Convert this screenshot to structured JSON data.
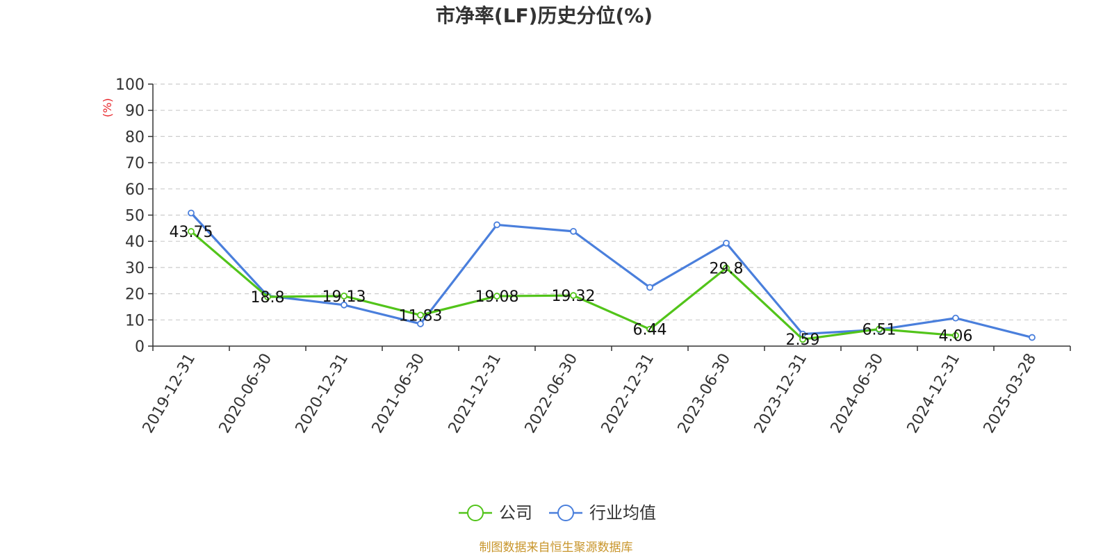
{
  "colors": {
    "company": "#52c41a",
    "industry": "#4a7fdc",
    "unit": "#e8252a",
    "source": "#c8952b",
    "grid": "#cccccc",
    "axis": "#333333"
  },
  "chart_data": {
    "type": "line",
    "title": "市净率(LF)历史分位(%)",
    "ylabel": "(%)",
    "ylim": [
      0,
      100
    ],
    "yticks": [
      0,
      10,
      20,
      30,
      40,
      50,
      60,
      70,
      80,
      90,
      100
    ],
    "categories": [
      "2019-12-31",
      "2020-06-30",
      "2020-12-31",
      "2021-06-30",
      "2021-12-31",
      "2022-06-30",
      "2022-12-31",
      "2023-06-30",
      "2023-12-31",
      "2024-06-30",
      "2024-12-31",
      "2025-03-28"
    ],
    "series": [
      {
        "name": "公司",
        "color_key": "company",
        "values": [
          43.75,
          18.8,
          19.13,
          11.83,
          19.08,
          19.32,
          6.44,
          29.8,
          2.59,
          6.51,
          4.06,
          null
        ],
        "labels": [
          "43.75",
          "18.8",
          "19.13",
          "11.83",
          "19.08",
          "19.32",
          "6.44",
          "29.8",
          "2.59",
          "6.51",
          "4.06",
          ""
        ]
      },
      {
        "name": "行业均值",
        "color_key": "industry",
        "values": [
          50.8,
          19.2,
          15.7,
          8.5,
          46.3,
          43.8,
          22.4,
          39.3,
          4.6,
          6.3,
          10.7,
          3.3
        ]
      }
    ],
    "grid": true,
    "legend_position": "bottom-center"
  },
  "footer": {
    "source": "制图数据来自恒生聚源数据库"
  }
}
